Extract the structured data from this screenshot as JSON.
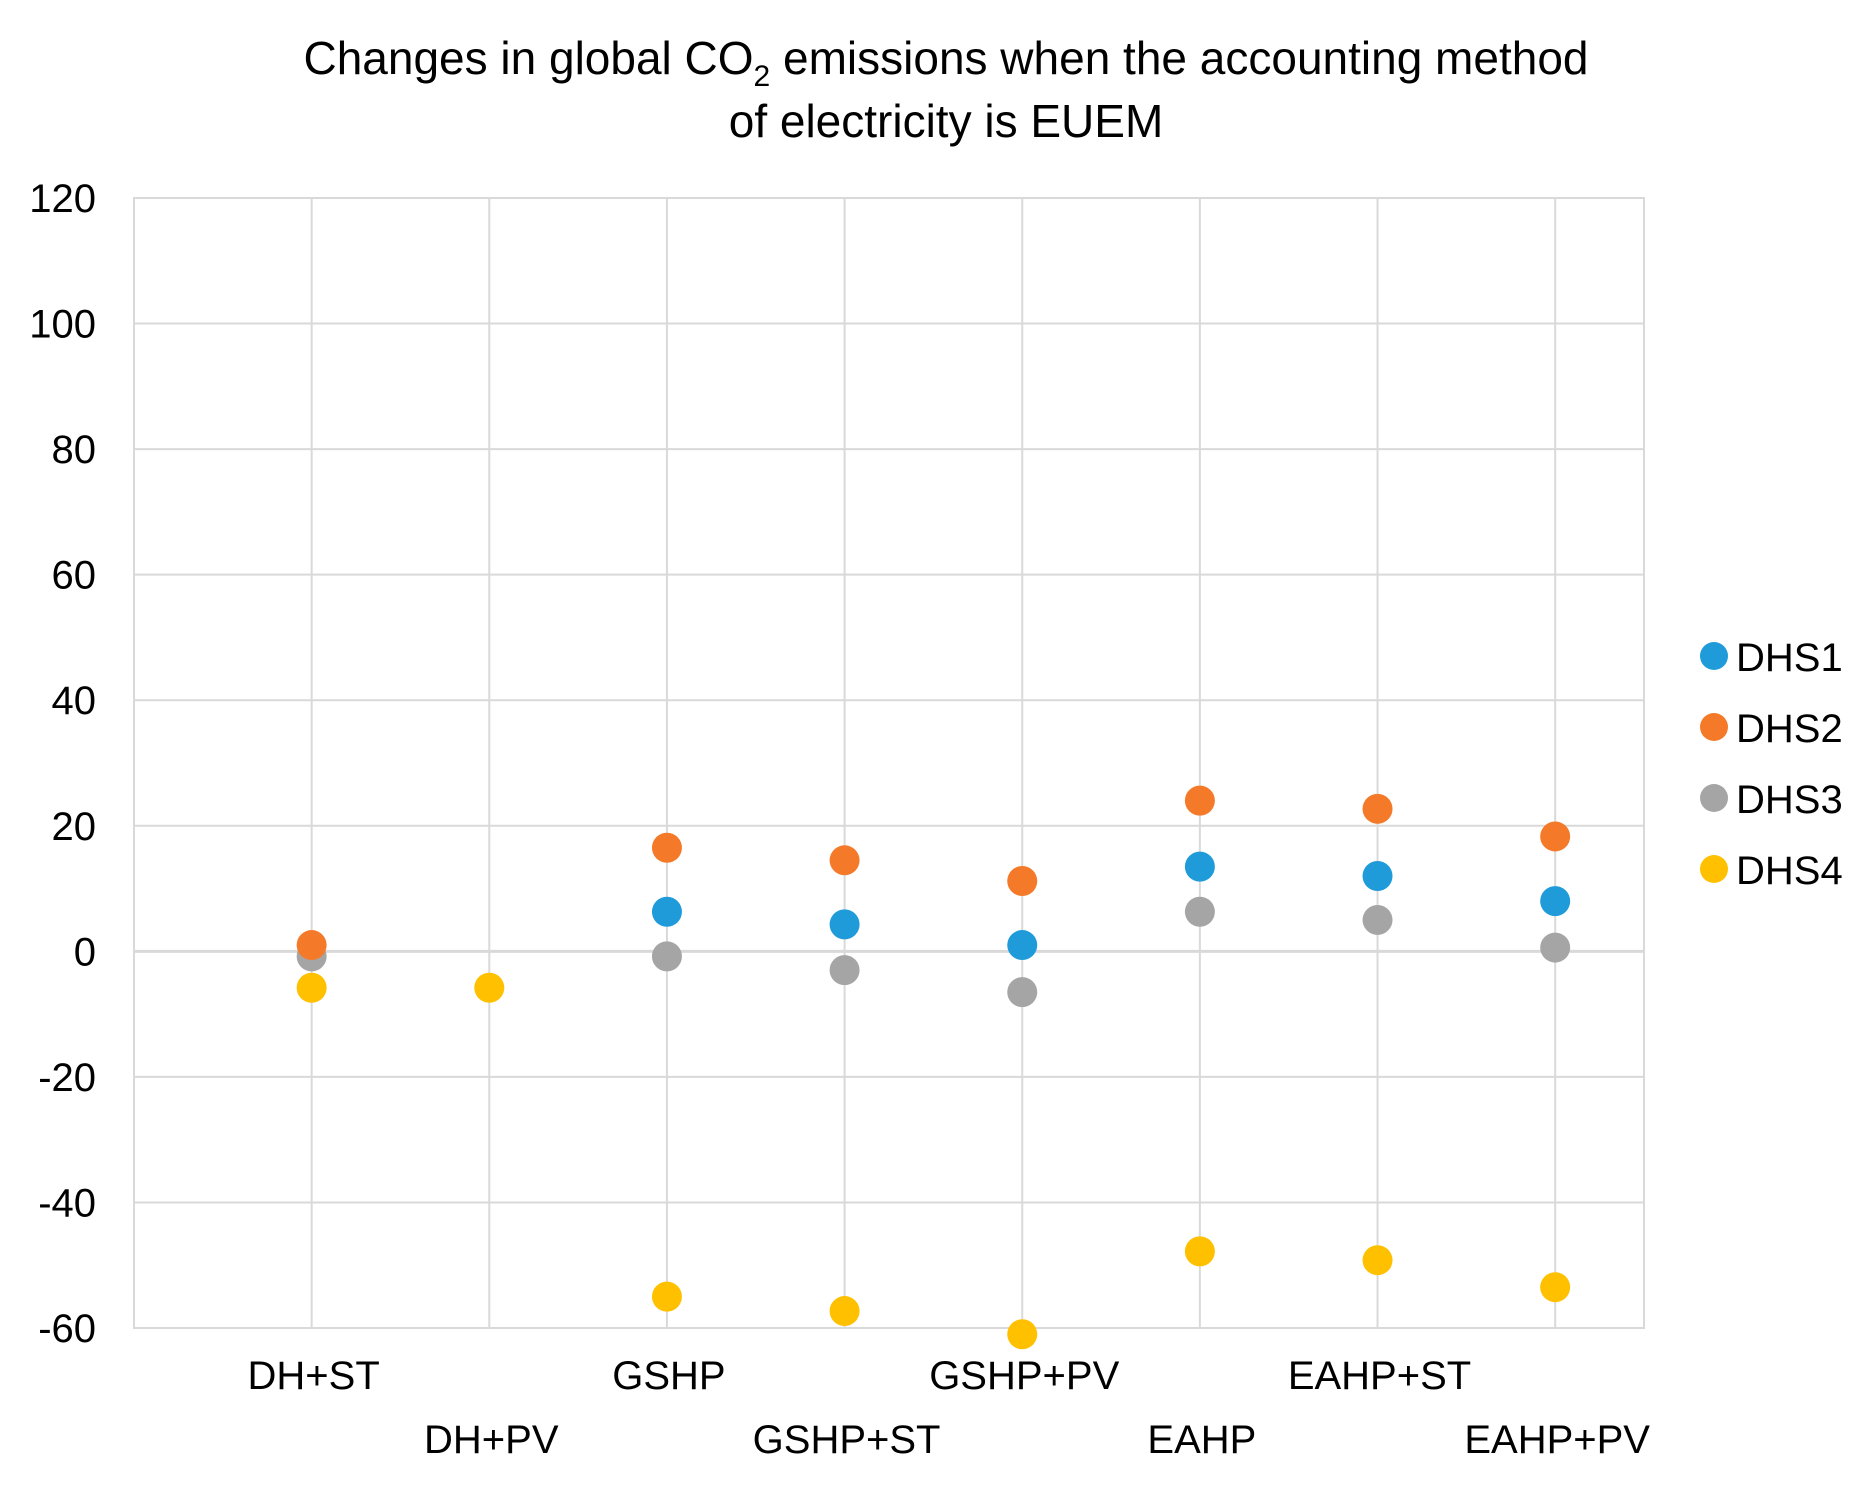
{
  "chart_data": {
    "type": "scatter",
    "title": {
      "line1_prefix": "Changes in global CO",
      "line1_subscript": "2",
      "line1_suffix": " emissions when the accounting method",
      "line2": "of electricity is EUEM"
    },
    "xlabel": "",
    "ylabel": "",
    "categories": [
      "DH+ST",
      "DH+PV",
      "GSHP",
      "GSHP+ST",
      "GSHP+PV",
      "EAHP",
      "EAHP+ST",
      "EAHP+PV"
    ],
    "ylim": [
      -60,
      120
    ],
    "yticks": [
      -60,
      -40,
      -20,
      0,
      20,
      40,
      60,
      80,
      100,
      120
    ],
    "grid": true,
    "legend_position": "right",
    "series": [
      {
        "name": "DHS1",
        "color": "#1F9BDA",
        "values": [
          null,
          null,
          6.3,
          4.3,
          1,
          13.5,
          12,
          8
        ]
      },
      {
        "name": "DHS2",
        "color": "#F47A2A",
        "values": [
          1,
          null,
          16.5,
          14.5,
          11.2,
          24,
          22.7,
          18.3
        ]
      },
      {
        "name": "DHS3",
        "color": "#A5A5A5",
        "values": [
          -0.8,
          null,
          -0.8,
          -3,
          -6.5,
          6.3,
          5,
          0.6
        ]
      },
      {
        "name": "DHS4",
        "color": "#FFC000",
        "values": [
          -5.8,
          -5.8,
          -55,
          -57.3,
          -61,
          -47.8,
          -49.2,
          -53.5
        ]
      }
    ]
  }
}
